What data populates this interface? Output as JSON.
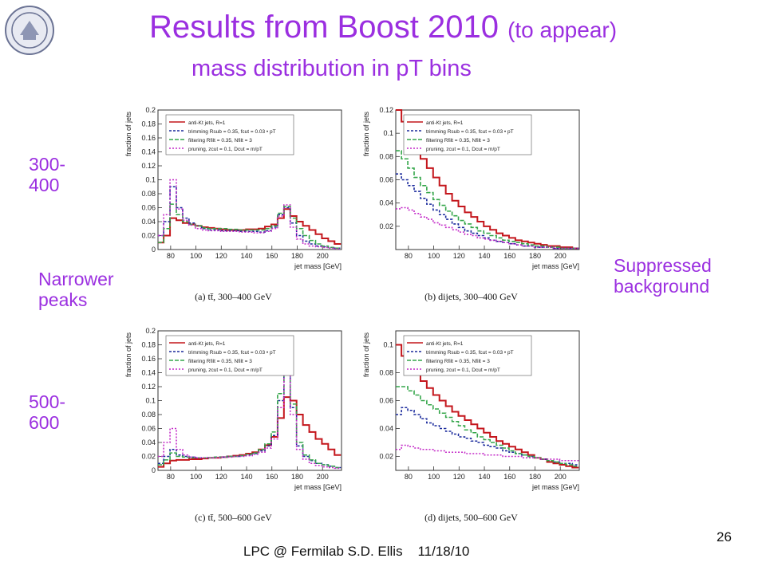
{
  "slide": {
    "title": "Results from Boost 2010",
    "title_small": "(to appear)",
    "subtitle": "mass distribution in pT bins",
    "label_300": "300-\n400",
    "label_500": "500-\n600",
    "label_narrower": "Narrower\npeaks",
    "label_suppressed": "Suppressed\nbackground",
    "footer": "LPC @ Fermilab S.D. Ellis    11/18/10",
    "page_number": "26"
  },
  "colors": {
    "anti_kt": "#c4161c",
    "trimming": "#1a2a9c",
    "filtering": "#34a64a",
    "pruning": "#c42bc8",
    "title": "#9b2fe0"
  },
  "chart_data": [
    {
      "id": "a",
      "type": "line",
      "caption": "(a) tt̄, 300–400 GeV",
      "xlabel": "jet mass [GeV]",
      "ylabel": "fraction of jets",
      "xlim": [
        70,
        215
      ],
      "ylim": [
        0,
        0.2
      ],
      "xticks": [
        80,
        100,
        120,
        140,
        160,
        180,
        200
      ],
      "yticks": [
        0,
        0.02,
        0.04,
        0.06,
        0.08,
        0.1,
        0.12,
        0.14,
        0.16,
        0.18,
        0.2
      ],
      "x": [
        72,
        77,
        82,
        87,
        92,
        97,
        102,
        107,
        112,
        117,
        122,
        127,
        132,
        137,
        142,
        147,
        152,
        157,
        162,
        167,
        172,
        177,
        182,
        187,
        192,
        197,
        202,
        207,
        212
      ],
      "series": [
        {
          "name": "anti-Kt jets, R=1",
          "values": [
            0.01,
            0.02,
            0.045,
            0.042,
            0.038,
            0.036,
            0.034,
            0.032,
            0.031,
            0.03,
            0.029,
            0.028,
            0.028,
            0.028,
            0.029,
            0.029,
            0.03,
            0.033,
            0.036,
            0.045,
            0.058,
            0.048,
            0.04,
            0.034,
            0.028,
            0.022,
            0.016,
            0.012,
            0.008
          ]
        },
        {
          "name": "trimming Rsub = 0.35, fcut = 0.03 • pT",
          "values": [
            0.02,
            0.04,
            0.09,
            0.06,
            0.045,
            0.038,
            0.034,
            0.03,
            0.028,
            0.028,
            0.027,
            0.027,
            0.027,
            0.026,
            0.026,
            0.026,
            0.025,
            0.027,
            0.032,
            0.05,
            0.06,
            0.038,
            0.02,
            0.012,
            0.008,
            0.005,
            0.004,
            0.003,
            0.002
          ]
        },
        {
          "name": "filtering Rfilt = 0.35, Nfilt = 3",
          "values": [
            0.01,
            0.03,
            0.065,
            0.05,
            0.04,
            0.036,
            0.034,
            0.031,
            0.03,
            0.03,
            0.03,
            0.029,
            0.029,
            0.028,
            0.028,
            0.028,
            0.028,
            0.03,
            0.034,
            0.052,
            0.062,
            0.045,
            0.03,
            0.02,
            0.013,
            0.008,
            0.005,
            0.003,
            0.002
          ]
        },
        {
          "name": "pruning, zcut = 0.1, Dcut = m/pT",
          "values": [
            0.02,
            0.05,
            0.1,
            0.058,
            0.042,
            0.035,
            0.03,
            0.028,
            0.027,
            0.027,
            0.026,
            0.026,
            0.026,
            0.025,
            0.025,
            0.024,
            0.024,
            0.026,
            0.03,
            0.048,
            0.064,
            0.032,
            0.015,
            0.008,
            0.005,
            0.004,
            0.003,
            0.002,
            0.001
          ]
        }
      ]
    },
    {
      "id": "b",
      "type": "line",
      "caption": "(b) dijets, 300–400 GeV",
      "xlabel": "jet mass [GeV]",
      "ylabel": "fraction of jets",
      "xlim": [
        70,
        215
      ],
      "ylim": [
        0,
        0.12
      ],
      "xticks": [
        80,
        100,
        120,
        140,
        160,
        180,
        200
      ],
      "yticks": [
        0.02,
        0.04,
        0.06,
        0.08,
        0.1,
        0.12
      ],
      "x": [
        72,
        77,
        82,
        87,
        92,
        97,
        102,
        107,
        112,
        117,
        122,
        127,
        132,
        137,
        142,
        147,
        152,
        157,
        162,
        167,
        172,
        177,
        182,
        187,
        192,
        197,
        202,
        207,
        212
      ],
      "series": [
        {
          "name": "anti-Kt jets, R=1",
          "values": [
            0.12,
            0.11,
            0.1,
            0.088,
            0.078,
            0.07,
            0.062,
            0.055,
            0.048,
            0.042,
            0.037,
            0.032,
            0.028,
            0.024,
            0.02,
            0.017,
            0.014,
            0.012,
            0.01,
            0.008,
            0.007,
            0.006,
            0.005,
            0.004,
            0.003,
            0.003,
            0.002,
            0.002,
            0.001
          ]
        },
        {
          "name": "trimming Rsub = 0.35, fcut = 0.03 • pT",
          "values": [
            0.065,
            0.06,
            0.055,
            0.05,
            0.044,
            0.039,
            0.034,
            0.03,
            0.026,
            0.022,
            0.019,
            0.016,
            0.014,
            0.012,
            0.01,
            0.008,
            0.007,
            0.006,
            0.005,
            0.004,
            0.003,
            0.003,
            0.002,
            0.002,
            0.002,
            0.001,
            0.001,
            0.001,
            0.001
          ]
        },
        {
          "name": "filtering Rfilt = 0.35, Nfilt = 3",
          "values": [
            0.085,
            0.078,
            0.07,
            0.062,
            0.055,
            0.049,
            0.043,
            0.038,
            0.033,
            0.029,
            0.025,
            0.022,
            0.019,
            0.016,
            0.014,
            0.012,
            0.01,
            0.008,
            0.007,
            0.006,
            0.005,
            0.004,
            0.003,
            0.003,
            0.002,
            0.002,
            0.001,
            0.001,
            0.001
          ]
        },
        {
          "name": "pruning, zcut = 0.1, Dcut = m/pT",
          "values": [
            0.035,
            0.036,
            0.034,
            0.031,
            0.028,
            0.026,
            0.023,
            0.021,
            0.019,
            0.017,
            0.015,
            0.013,
            0.012,
            0.01,
            0.009,
            0.008,
            0.007,
            0.006,
            0.005,
            0.004,
            0.003,
            0.003,
            0.002,
            0.002,
            0.002,
            0.001,
            0.001,
            0.001,
            0.001
          ]
        }
      ]
    },
    {
      "id": "c",
      "type": "line",
      "caption": "(c) tt̄, 500–600 GeV",
      "xlabel": "jet mass [GeV]",
      "ylabel": "fraction of jets",
      "xlim": [
        70,
        215
      ],
      "ylim": [
        0,
        0.2
      ],
      "xticks": [
        80,
        100,
        120,
        140,
        160,
        180,
        200
      ],
      "yticks": [
        0,
        0.02,
        0.04,
        0.06,
        0.08,
        0.1,
        0.12,
        0.14,
        0.16,
        0.18,
        0.2
      ],
      "x": [
        72,
        77,
        82,
        87,
        92,
        97,
        102,
        107,
        112,
        117,
        122,
        127,
        132,
        137,
        142,
        147,
        152,
        157,
        162,
        167,
        172,
        177,
        182,
        187,
        192,
        197,
        202,
        207,
        212
      ],
      "series": [
        {
          "name": "anti-Kt jets, R=1",
          "values": [
            0.005,
            0.01,
            0.014,
            0.015,
            0.015,
            0.016,
            0.016,
            0.017,
            0.018,
            0.018,
            0.019,
            0.02,
            0.021,
            0.022,
            0.024,
            0.026,
            0.03,
            0.036,
            0.048,
            0.075,
            0.105,
            0.1,
            0.08,
            0.065,
            0.055,
            0.045,
            0.038,
            0.03,
            0.022
          ]
        },
        {
          "name": "trimming Rsub = 0.35, fcut = 0.03 • pT",
          "values": [
            0.01,
            0.02,
            0.03,
            0.022,
            0.02,
            0.019,
            0.018,
            0.018,
            0.018,
            0.019,
            0.019,
            0.02,
            0.02,
            0.021,
            0.022,
            0.024,
            0.028,
            0.035,
            0.05,
            0.1,
            0.185,
            0.09,
            0.035,
            0.02,
            0.014,
            0.01,
            0.008,
            0.006,
            0.004
          ]
        },
        {
          "name": "filtering Rfilt = 0.35, Nfilt = 3",
          "values": [
            0.008,
            0.015,
            0.025,
            0.02,
            0.019,
            0.018,
            0.018,
            0.018,
            0.018,
            0.019,
            0.019,
            0.02,
            0.02,
            0.021,
            0.023,
            0.025,
            0.03,
            0.038,
            0.055,
            0.11,
            0.16,
            0.095,
            0.04,
            0.022,
            0.015,
            0.01,
            0.008,
            0.006,
            0.004
          ]
        },
        {
          "name": "pruning, zcut = 0.1, Dcut = m/pT",
          "values": [
            0.02,
            0.04,
            0.06,
            0.03,
            0.022,
            0.019,
            0.018,
            0.018,
            0.018,
            0.018,
            0.019,
            0.019,
            0.02,
            0.02,
            0.021,
            0.023,
            0.026,
            0.032,
            0.045,
            0.09,
            0.17,
            0.08,
            0.03,
            0.016,
            0.01,
            0.007,
            0.005,
            0.004,
            0.003
          ]
        }
      ]
    },
    {
      "id": "d",
      "type": "line",
      "caption": "(d) dijets, 500–600 GeV",
      "xlabel": "jet mass [GeV]",
      "ylabel": "fraction of jets",
      "xlim": [
        70,
        215
      ],
      "ylim": [
        0.01,
        0.11
      ],
      "xticks": [
        80,
        100,
        120,
        140,
        160,
        180,
        200
      ],
      "yticks": [
        0.02,
        0.04,
        0.06,
        0.08,
        0.1
      ],
      "x": [
        72,
        77,
        82,
        87,
        92,
        97,
        102,
        107,
        112,
        117,
        122,
        127,
        132,
        137,
        142,
        147,
        152,
        157,
        162,
        167,
        172,
        177,
        182,
        187,
        192,
        197,
        202,
        207,
        212
      ],
      "series": [
        {
          "name": "anti-Kt jets, R=1",
          "values": [
            0.1,
            0.092,
            0.085,
            0.079,
            0.074,
            0.069,
            0.064,
            0.06,
            0.056,
            0.052,
            0.049,
            0.046,
            0.043,
            0.04,
            0.037,
            0.034,
            0.031,
            0.029,
            0.027,
            0.025,
            0.023,
            0.021,
            0.019,
            0.018,
            0.016,
            0.015,
            0.014,
            0.013,
            0.012
          ]
        },
        {
          "name": "trimming Rsub = 0.35, fcut = 0.03 • pT",
          "values": [
            0.05,
            0.055,
            0.053,
            0.05,
            0.047,
            0.044,
            0.042,
            0.04,
            0.038,
            0.036,
            0.034,
            0.033,
            0.031,
            0.03,
            0.028,
            0.027,
            0.026,
            0.024,
            0.023,
            0.022,
            0.021,
            0.02,
            0.019,
            0.018,
            0.017,
            0.016,
            0.015,
            0.015,
            0.014
          ]
        },
        {
          "name": "filtering Rfilt = 0.35, Nfilt = 3",
          "values": [
            0.07,
            0.07,
            0.067,
            0.064,
            0.06,
            0.057,
            0.054,
            0.051,
            0.048,
            0.045,
            0.042,
            0.039,
            0.037,
            0.034,
            0.032,
            0.03,
            0.028,
            0.026,
            0.024,
            0.022,
            0.021,
            0.02,
            0.019,
            0.018,
            0.017,
            0.016,
            0.015,
            0.014,
            0.013
          ]
        },
        {
          "name": "pruning, zcut = 0.1, Dcut = m/pT",
          "values": [
            0.025,
            0.028,
            0.027,
            0.026,
            0.025,
            0.025,
            0.024,
            0.024,
            0.023,
            0.023,
            0.023,
            0.022,
            0.022,
            0.022,
            0.021,
            0.021,
            0.021,
            0.02,
            0.02,
            0.02,
            0.019,
            0.019,
            0.019,
            0.018,
            0.018,
            0.018,
            0.017,
            0.017,
            0.017
          ]
        }
      ]
    }
  ]
}
